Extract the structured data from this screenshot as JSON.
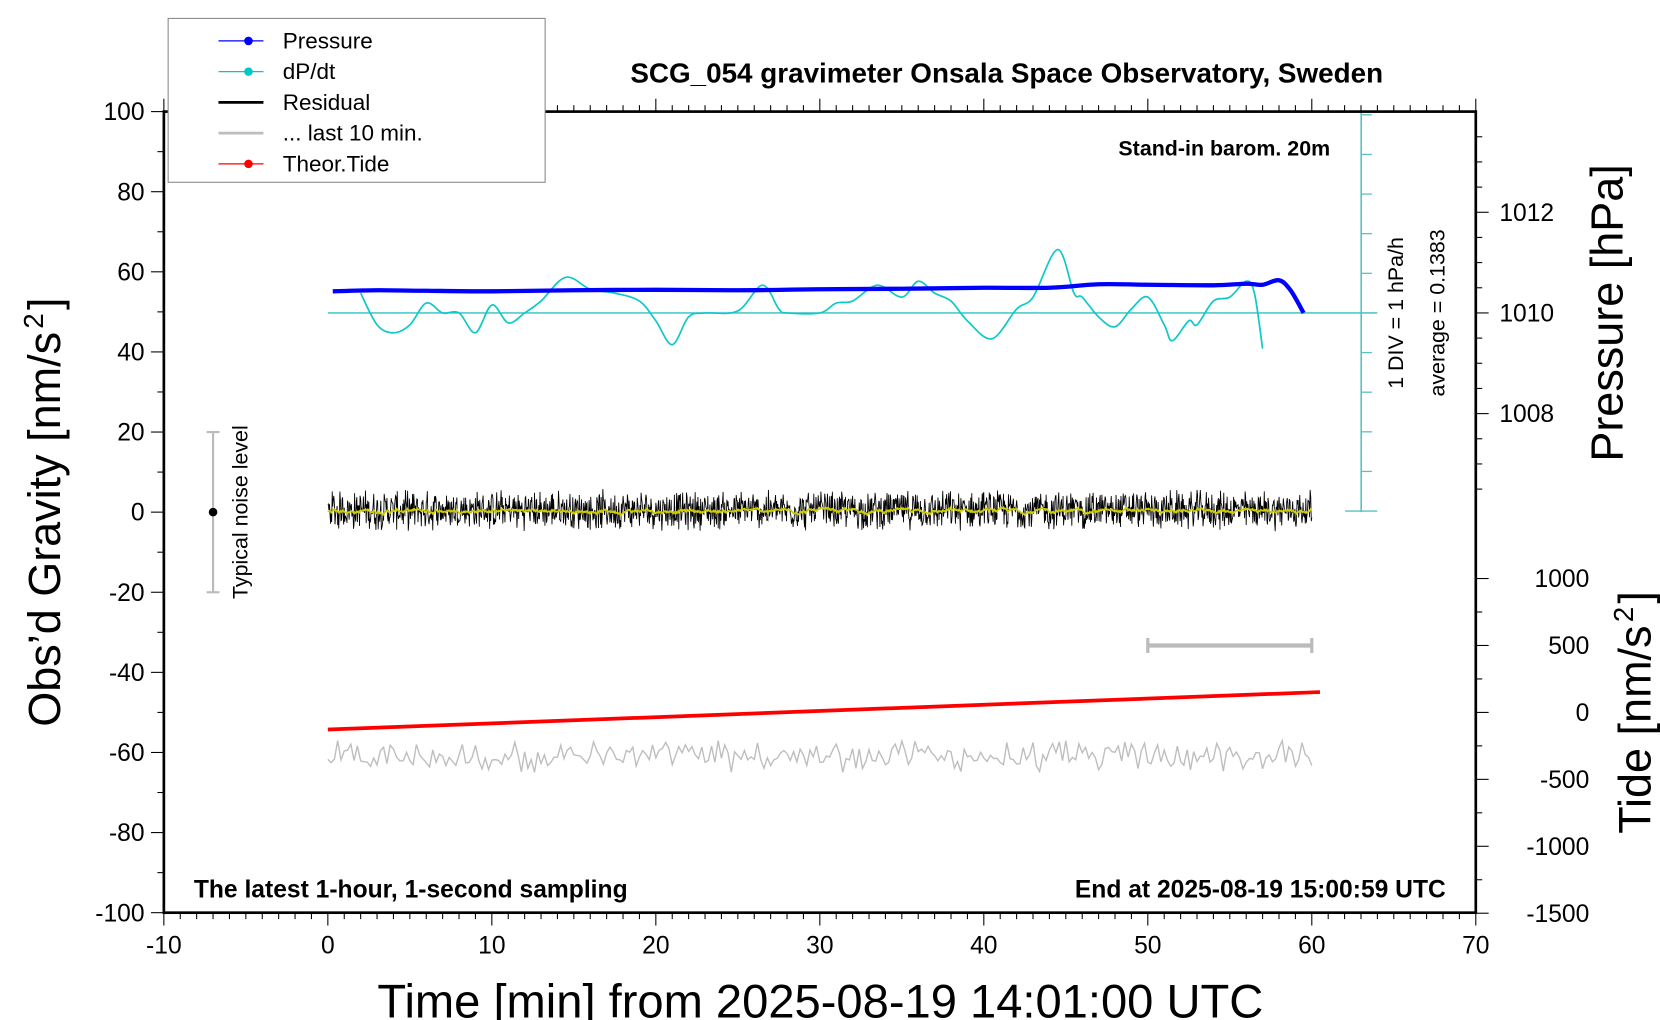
{
  "chart_data": {
    "type": "line",
    "title": "SCG_054 gravimeter Onsala Space Observatory, Sweden",
    "xlabel": "Time [min] from 2025-08-19 14:01:00 UTC",
    "ylabel": "Obs’d Gravity [nm/s",
    "ylabel_sup": "2",
    "ylabel_end": "]",
    "y2label": "Pressure [hPa]",
    "y3label": "Tide [nm/s",
    "y3label_sup": "2",
    "y3label_end": "]",
    "xlim": [
      -10,
      70
    ],
    "ylim": [
      -100,
      100
    ],
    "pressure_lim": [
      1006,
      1014
    ],
    "tide_lim": [
      -1500,
      1500
    ],
    "xticks": [
      "-10",
      "0",
      "10",
      "20",
      "30",
      "40",
      "50",
      "60",
      "70"
    ],
    "yticks": [
      "100",
      "80",
      "60",
      "40",
      "20",
      "0",
      "-20",
      "-40",
      "-60",
      "-80",
      "-100"
    ],
    "pressure_ticks": [
      "1012",
      "1010",
      "1008"
    ],
    "tide_ticks": [
      "1000",
      "500",
      "0",
      "-500",
      "-1000",
      "-1500"
    ],
    "annotations": {
      "barometer": "Stand-in barom. 20m",
      "sampling": "The latest 1-hour, 1-second sampling",
      "end_time": "End at 2025-08-19 15:00:59 UTC",
      "div": "1 DIV = 1 hPa/h",
      "average": "average = 0.1383",
      "noise": "Typical noise level"
    },
    "legend": {
      "placement": "top-left",
      "entries": [
        {
          "label": "Pressure",
          "color": "#0000ff",
          "marker": true
        },
        {
          "label": "dP/dt",
          "color": "#00c8c8",
          "marker": true
        },
        {
          "label": "Residual",
          "color": "#000000",
          "marker": false
        },
        {
          "label": "... last 10 min.",
          "color": "#bebebe",
          "marker": false
        },
        {
          "label": "Theor.Tide",
          "color": "#ff0000",
          "marker": true
        }
      ]
    },
    "series": [
      {
        "name": "Pressure",
        "axis": "pressure",
        "color": "#0000ff",
        "x": [
          0.3,
          3,
          6,
          10,
          15,
          20,
          25,
          30,
          35,
          40,
          44,
          47,
          50,
          54,
          56,
          57,
          58,
          58.7,
          59.5
        ],
        "values": [
          1010.43,
          1010.45,
          1010.44,
          1010.43,
          1010.45,
          1010.46,
          1010.45,
          1010.47,
          1010.48,
          1010.5,
          1010.5,
          1010.57,
          1010.56,
          1010.55,
          1010.58,
          1010.56,
          1010.65,
          1010.45,
          1010.0
        ]
      },
      {
        "name": "dP/dt",
        "axis": "dpdt",
        "unit": "hPa/h",
        "color": "#00c8c8",
        "x": [
          2,
          3,
          4,
          5,
          6,
          7,
          8,
          9,
          10,
          11,
          12,
          13,
          14.5,
          16,
          17.5,
          19,
          20,
          21,
          22,
          23,
          25,
          26.5,
          27.5,
          28,
          30,
          31,
          32,
          33.5,
          35,
          36,
          37,
          38,
          39,
          40.5,
          42,
          43,
          44.5,
          45.5,
          46,
          47,
          48,
          49,
          50,
          51,
          51.5,
          52.5,
          53,
          54,
          55,
          56,
          56.5,
          57
        ],
        "values": [
          0.5,
          -0.3,
          -0.5,
          -0.3,
          0.25,
          0.0,
          0.0,
          -0.5,
          0.2,
          -0.25,
          0.0,
          0.3,
          0.9,
          0.6,
          0.5,
          0.3,
          -0.2,
          -0.8,
          -0.1,
          0.0,
          0.05,
          0.7,
          0.1,
          0.0,
          0.0,
          0.25,
          0.3,
          0.7,
          0.4,
          0.8,
          0.5,
          0.3,
          -0.2,
          -0.65,
          0.1,
          0.4,
          1.6,
          0.5,
          0.4,
          -0.1,
          -0.35,
          0.1,
          0.4,
          -0.3,
          -0.7,
          -0.2,
          -0.3,
          0.3,
          0.4,
          0.8,
          0.5,
          -0.9
        ]
      },
      {
        "name": "Theor.Tide",
        "axis": "tide",
        "unit": "nm/s2",
        "color": "#ff0000",
        "x": [
          0,
          60.5
        ],
        "values": [
          -128,
          152
        ]
      },
      {
        "name": "Residual",
        "axis": "gravity",
        "color": "#000000",
        "x_range": [
          0,
          60
        ],
        "mean": 0.5,
        "noise_amplitude": 4.5,
        "smoothed_color": "#cccc00"
      },
      {
        "name": "... last 10 min.",
        "axis": "gravity",
        "color": "#bebebe",
        "x_range": [
          0,
          60
        ],
        "mean": -61,
        "noise_amplitude": 4
      }
    ],
    "dpdt_zero_line": 1010,
    "noise_level_bar": {
      "x": -7,
      "range": [
        -20,
        20
      ],
      "center": 0
    },
    "ten_min_scale_bar": {
      "x_range": [
        50,
        60
      ],
      "tide_value": 500
    }
  }
}
